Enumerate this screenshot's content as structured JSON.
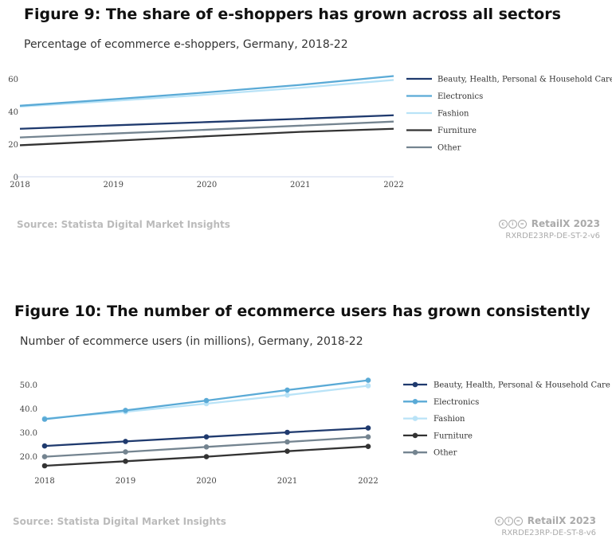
{
  "colors": {
    "Beauty, Health, Personal & Household Care": "#1f3a6e",
    "Electronics": "#5aaad6",
    "Fashion": "#b9e3f7",
    "Furniture": "#333333",
    "Other": "#748490"
  },
  "figures": [
    {
      "title": "Figure 9: The share of e-shoppers has grown across all sectors",
      "subtitle": "Percentage of ecommerce e-shoppers, Germany, 2018-22",
      "source": "Source: Statista Digital Market Insights",
      "brand": "RetailX 2023",
      "code": "RXRDE23RP-DE-ST-2-v6"
    },
    {
      "title": "Figure 10: The number of ecommerce users has grown consistently",
      "subtitle": "Number of ecommerce users (in millions), Germany, 2018-22",
      "source": "Source: Statista Digital Market Insights",
      "brand": "RetailX 2023",
      "code": "RXRDE23RP-DE-ST-8-v6"
    }
  ],
  "chart_data": [
    {
      "type": "line",
      "title": "Figure 9: The share of e-shoppers has grown across all sectors",
      "subtitle": "Percentage of ecommerce e-shoppers, Germany, 2018-22",
      "x": [
        "2018",
        "2019",
        "2020",
        "2021",
        "2022"
      ],
      "yticks": [
        "0",
        "20",
        "40",
        "60"
      ],
      "ylim": [
        0,
        60
      ],
      "markers": false,
      "legend": "right",
      "grid": false,
      "series": [
        {
          "name": "Beauty, Health, Personal & Household Care",
          "values": [
            29.4,
            31.5,
            33.5,
            35.5,
            37.7
          ]
        },
        {
          "name": "Electronics",
          "values": [
            43.5,
            47.5,
            51.7,
            56.3,
            61.7
          ]
        },
        {
          "name": "Fashion",
          "values": [
            43,
            46.5,
            50.3,
            54.5,
            59.3
          ]
        },
        {
          "name": "Furniture",
          "values": [
            19.3,
            22,
            24.8,
            27.5,
            29.4
          ]
        },
        {
          "name": "Other",
          "values": [
            24.1,
            26.5,
            28.8,
            31.3,
            33.8
          ]
        }
      ]
    },
    {
      "type": "line",
      "title": "Figure 10: The number of ecommerce users has grown consistently",
      "subtitle": "Number of ecommerce users (in millions), Germany, 2018-22",
      "x": [
        "2018",
        "2019",
        "2020",
        "2021",
        "2022"
      ],
      "yticks": [
        "20.0",
        "30.0",
        "40.0",
        "50.0"
      ],
      "ylim": [
        13,
        53
      ],
      "markers": true,
      "legend": "right",
      "grid": false,
      "series": [
        {
          "name": "Beauty, Health, Personal & Household Care",
          "values": [
            24.3,
            26.2,
            28.1,
            30,
            31.8
          ]
        },
        {
          "name": "Electronics",
          "values": [
            35.5,
            39.2,
            43.3,
            47.7,
            51.8
          ]
        },
        {
          "name": "Fashion",
          "values": [
            35.8,
            38.6,
            42,
            45.6,
            49.5
          ]
        },
        {
          "name": "Furniture",
          "values": [
            16,
            17.9,
            19.8,
            22.1,
            24.1
          ]
        },
        {
          "name": "Other",
          "values": [
            19.8,
            21.8,
            23.9,
            26,
            28.1
          ]
        }
      ]
    }
  ]
}
